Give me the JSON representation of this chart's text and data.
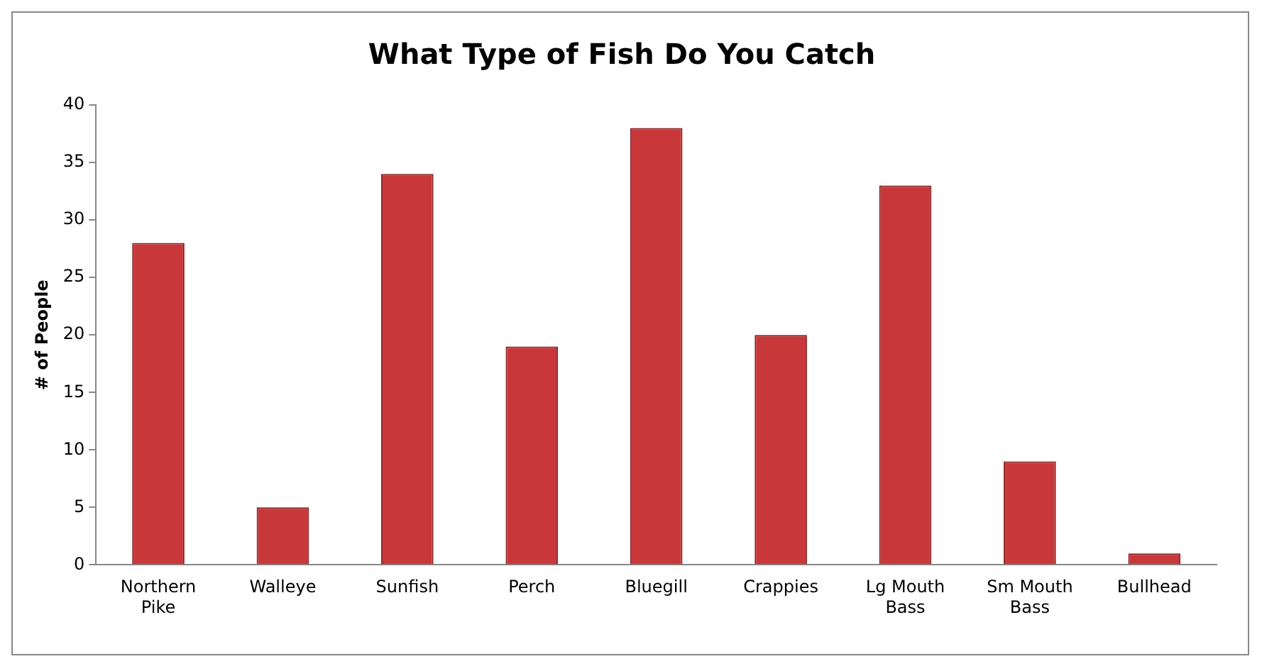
{
  "chart_data": {
    "type": "bar",
    "title": "What Type of Fish Do You Catch",
    "ylabel": "# of People",
    "categories": [
      "Northern Pike",
      "Walleye",
      "Sunfish",
      "Perch",
      "Bluegill",
      "Crappies",
      "Lg Mouth Bass",
      "Sm Mouth Bass",
      "Bullhead"
    ],
    "values": [
      28,
      5,
      34,
      19,
      38,
      20,
      33,
      9,
      1
    ],
    "color": "#c8383a",
    "ylim": [
      0,
      40
    ],
    "yticks": [
      0,
      5,
      10,
      15,
      20,
      25,
      30,
      35,
      40
    ],
    "grid": false,
    "legend": false
  }
}
